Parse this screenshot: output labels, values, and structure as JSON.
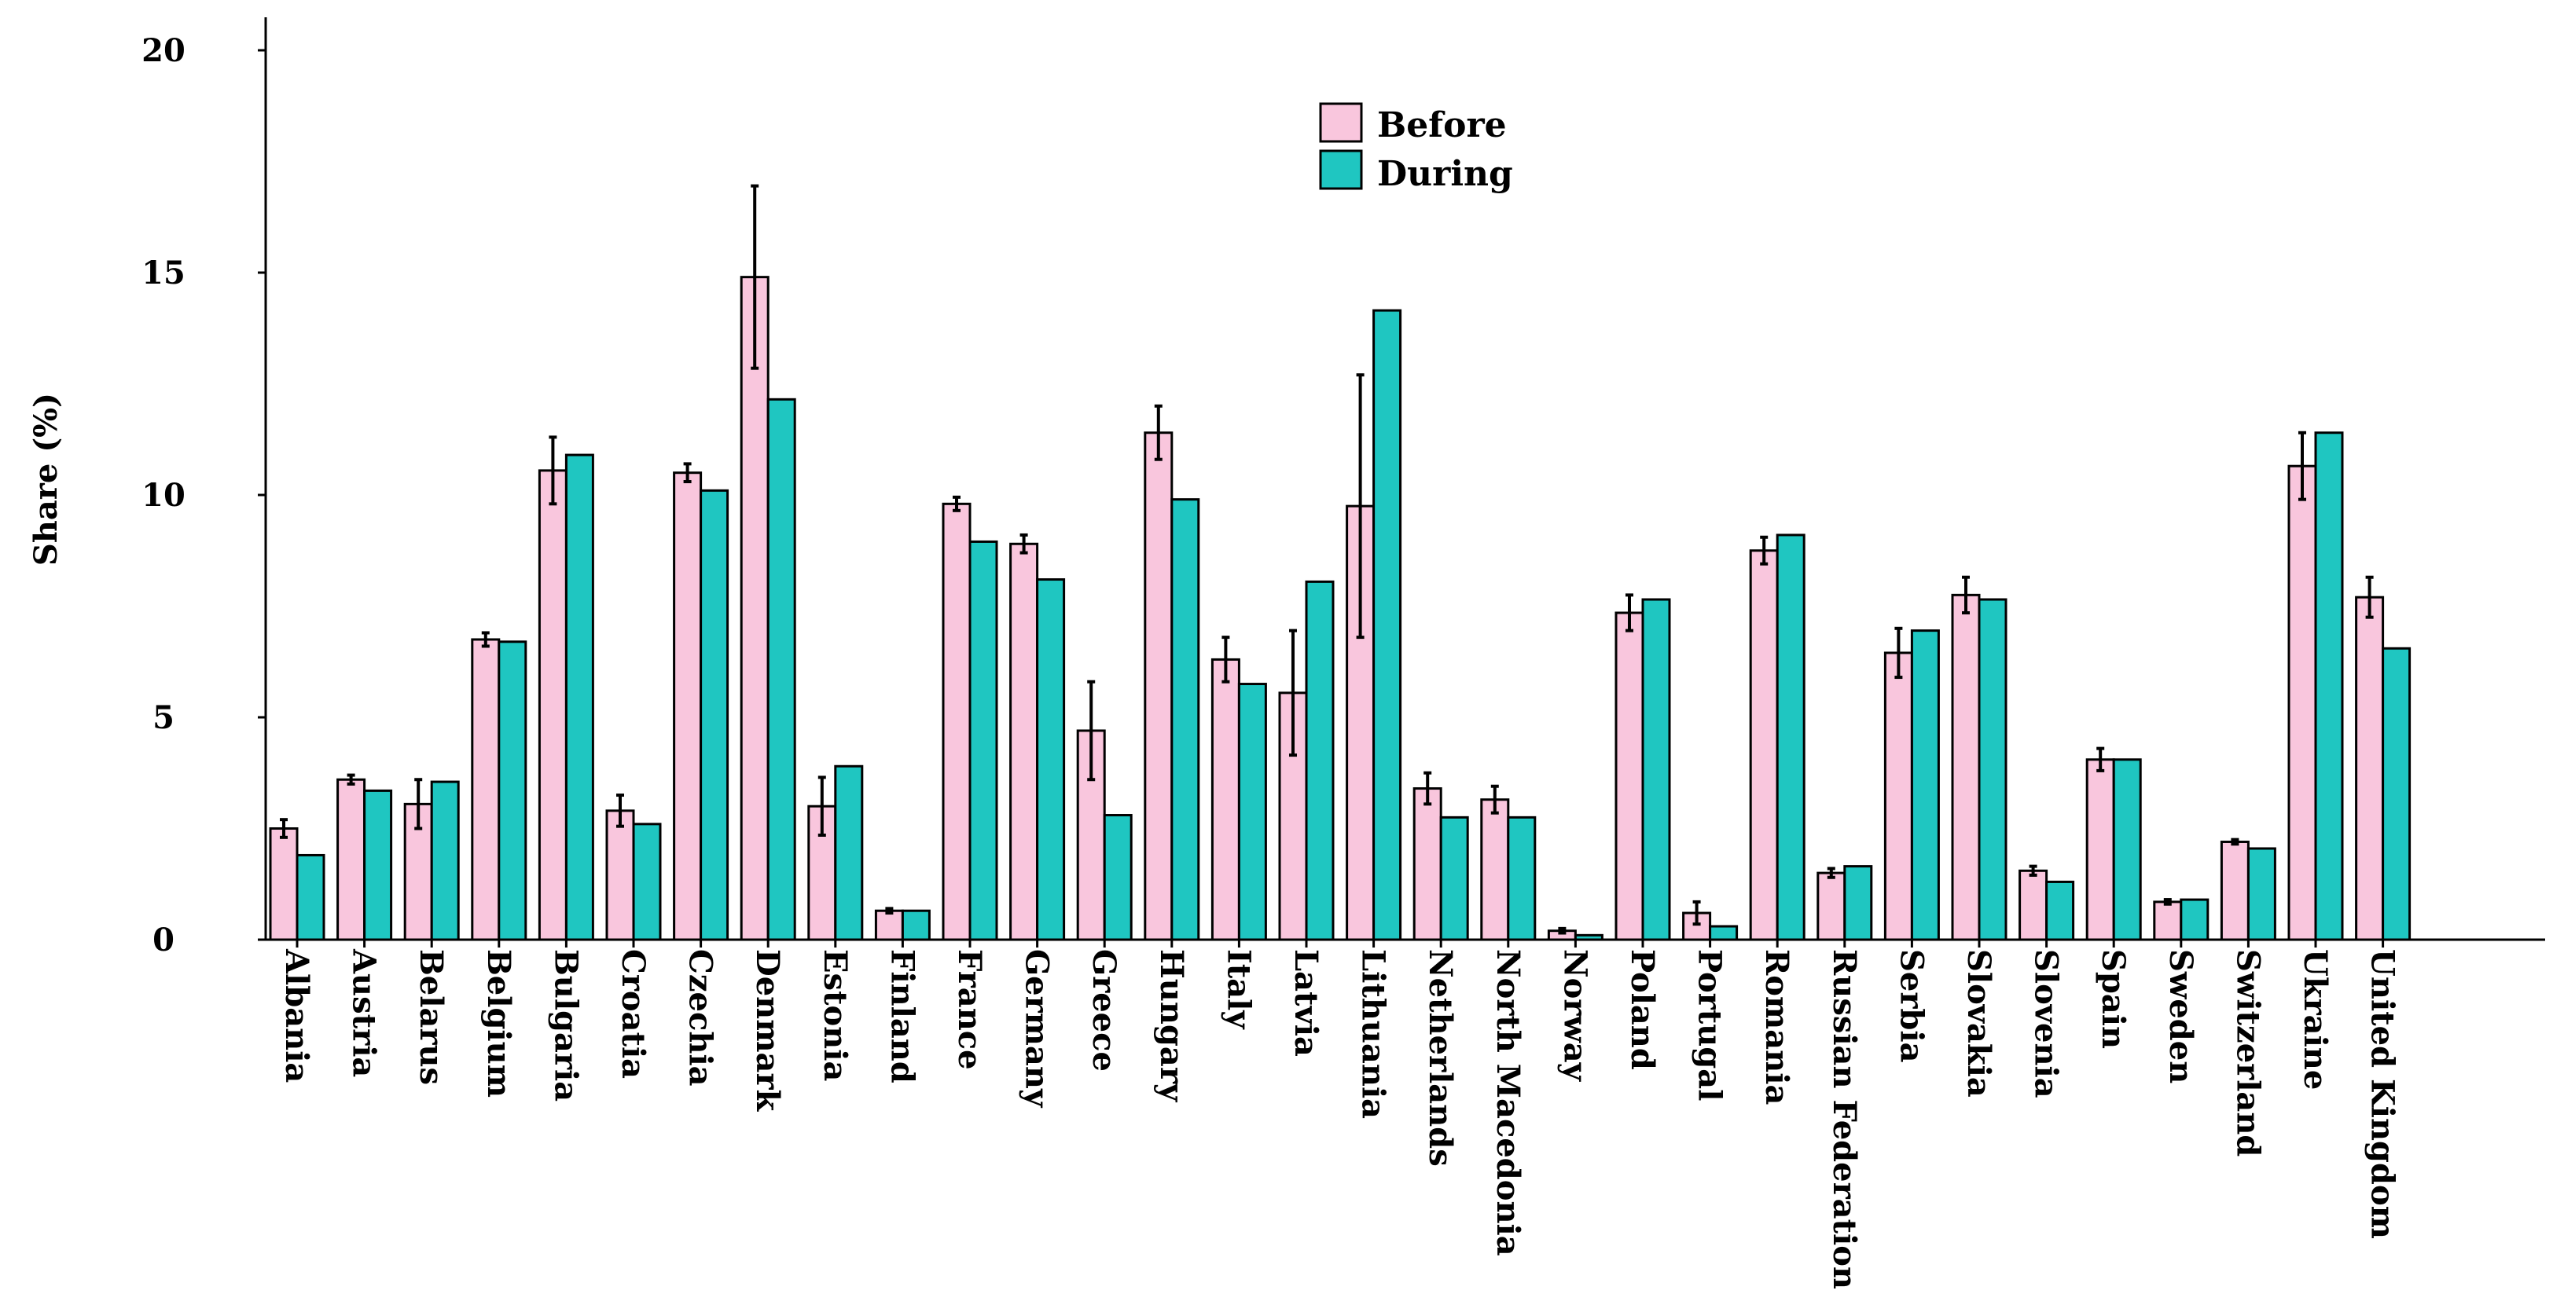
{
  "chart_data": {
    "type": "bar",
    "title": "",
    "xlabel": "",
    "ylabel": "Share (%)",
    "ylim": [
      0,
      20
    ],
    "yticks": [
      "0",
      "5",
      "10",
      "15",
      "20"
    ],
    "grid": false,
    "legend_position": "top-center",
    "categories": [
      "Albania",
      "Austria",
      "Belarus",
      "Belgium",
      "Bulgaria",
      "Croatia",
      "Czechia",
      "Denmark",
      "Estonia",
      "Finland",
      "France",
      "Germany",
      "Greece",
      "Hungary",
      "Italy",
      "Latvia",
      "Lithuania",
      "Netherlands",
      "North Macedonia",
      "Norway",
      "Poland",
      "Portugal",
      "Romania",
      "Russian Federation",
      "Serbia",
      "Slovakia",
      "Slovenia",
      "Spain",
      "Sweden",
      "Switzerland",
      "Ukraine",
      "United Kingdom"
    ],
    "series": [
      {
        "name": "Before",
        "color": "#f9c6dd",
        "values": [
          2.5,
          3.6,
          3.05,
          6.75,
          10.55,
          2.9,
          10.5,
          14.9,
          3.0,
          0.65,
          9.8,
          8.9,
          4.7,
          11.4,
          6.3,
          5.55,
          9.75,
          3.4,
          3.15,
          0.2,
          7.35,
          0.6,
          8.75,
          1.5,
          6.45,
          7.75,
          1.55,
          4.05,
          0.85,
          2.2,
          10.65,
          7.7
        ],
        "error": [
          0.2,
          0.1,
          0.55,
          0.15,
          0.75,
          0.35,
          0.2,
          2.05,
          0.65,
          0.05,
          0.15,
          0.2,
          1.1,
          0.6,
          0.5,
          1.4,
          2.95,
          0.35,
          0.3,
          0.05,
          0.4,
          0.25,
          0.3,
          0.1,
          0.55,
          0.4,
          0.1,
          0.25,
          0.05,
          0.05,
          0.75,
          0.45
        ]
      },
      {
        "name": "During",
        "color": "#1fc6c1",
        "values": [
          1.9,
          3.35,
          3.55,
          6.7,
          10.9,
          2.6,
          10.1,
          12.15,
          3.9,
          0.65,
          8.95,
          8.1,
          2.8,
          9.9,
          5.75,
          8.05,
          14.15,
          2.75,
          2.75,
          0.1,
          7.65,
          0.3,
          9.1,
          1.65,
          6.95,
          7.65,
          1.3,
          4.05,
          0.9,
          2.05,
          11.4,
          6.55
        ]
      }
    ]
  }
}
